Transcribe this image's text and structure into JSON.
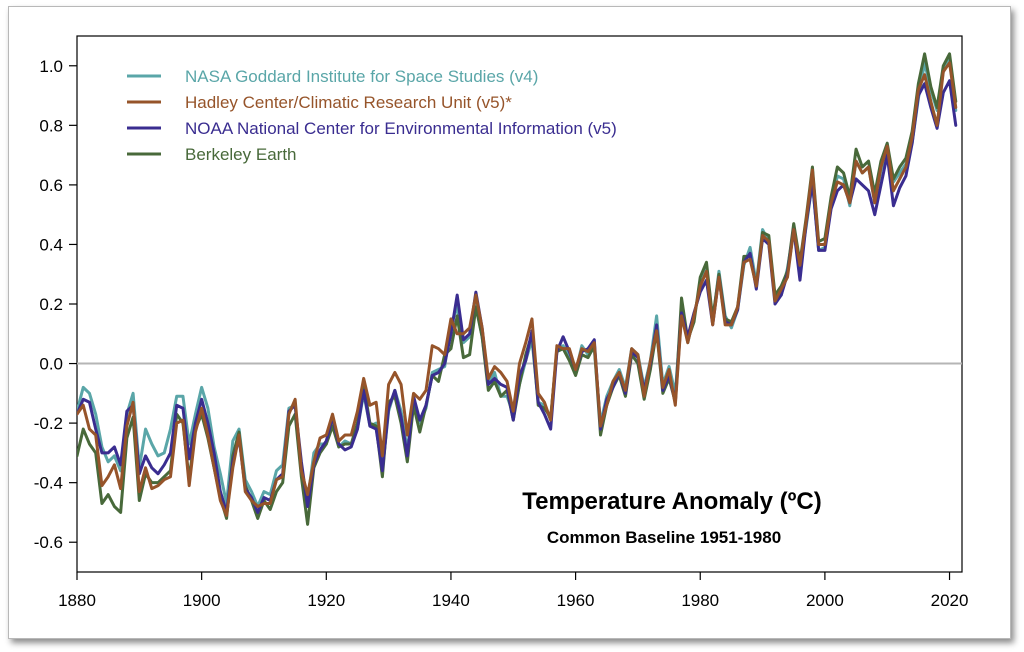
{
  "chart_data": {
    "type": "line",
    "title": "Temperature Anomaly (ºC)",
    "subtitle": "Common Baseline 1951-1980",
    "xlabel": "",
    "ylabel": "",
    "xlim": [
      1880,
      2022
    ],
    "ylim": [
      -0.7,
      1.1
    ],
    "x_ticks": [
      1880,
      1900,
      1920,
      1940,
      1960,
      1980,
      2000,
      2020
    ],
    "y_ticks": [
      -0.6,
      -0.4,
      -0.2,
      0.0,
      0.2,
      0.4,
      0.6,
      0.8,
      1.0
    ],
    "y_tick_labels": [
      "-0.6",
      "-0.4",
      "-0.2",
      "0.0",
      "0.2",
      "0.4",
      "0.6",
      "0.8",
      "1.0"
    ],
    "zero_line": true,
    "grid": false,
    "legend_position": "top-left",
    "x_start": 1880,
    "series": [
      {
        "name": "NASA Goddard Institute for Space Studies (v4)",
        "color": "#5aa6a8",
        "values": [
          -0.16,
          -0.08,
          -0.1,
          -0.17,
          -0.28,
          -0.33,
          -0.31,
          -0.36,
          -0.17,
          -0.1,
          -0.35,
          -0.22,
          -0.27,
          -0.31,
          -0.3,
          -0.22,
          -0.11,
          -0.11,
          -0.27,
          -0.17,
          -0.08,
          -0.15,
          -0.28,
          -0.37,
          -0.47,
          -0.26,
          -0.22,
          -0.39,
          -0.43,
          -0.48,
          -0.43,
          -0.44,
          -0.36,
          -0.34,
          -0.15,
          -0.14,
          -0.36,
          -0.46,
          -0.3,
          -0.27,
          -0.27,
          -0.19,
          -0.28,
          -0.26,
          -0.27,
          -0.22,
          -0.1,
          -0.21,
          -0.2,
          -0.36,
          -0.16,
          -0.09,
          -0.16,
          -0.29,
          -0.13,
          -0.2,
          -0.15,
          -0.03,
          -0.02,
          -0.01,
          0.13,
          0.19,
          0.07,
          0.09,
          0.2,
          0.09,
          -0.07,
          -0.03,
          -0.11,
          -0.11,
          -0.17,
          -0.07,
          0.01,
          0.08,
          -0.13,
          -0.14,
          -0.19,
          0.05,
          0.06,
          0.03,
          -0.03,
          0.06,
          0.03,
          0.05,
          -0.2,
          -0.11,
          -0.06,
          -0.02,
          -0.08,
          0.05,
          0.03,
          -0.08,
          0.01,
          0.16,
          -0.07,
          -0.01,
          -0.1,
          0.18,
          0.07,
          0.16,
          0.26,
          0.32,
          0.14,
          0.31,
          0.16,
          0.12,
          0.18,
          0.33,
          0.39,
          0.27,
          0.45,
          0.41,
          0.22,
          0.23,
          0.32,
          0.45,
          0.33,
          0.46,
          0.61,
          0.38,
          0.39,
          0.53,
          0.63,
          0.62,
          0.53,
          0.68,
          0.64,
          0.66,
          0.54,
          0.65,
          0.72,
          0.61,
          0.64,
          0.67,
          0.74,
          0.89,
          1.01,
          0.92,
          0.85,
          0.98,
          1.02,
          0.85
        ]
      },
      {
        "name": "Hadley Center/Climatic Research Unit (v5)*",
        "color": "#96542a",
        "values": [
          -0.17,
          -0.14,
          -0.22,
          -0.24,
          -0.41,
          -0.38,
          -0.34,
          -0.42,
          -0.21,
          -0.13,
          -0.43,
          -0.35,
          -0.42,
          -0.41,
          -0.39,
          -0.38,
          -0.2,
          -0.19,
          -0.41,
          -0.23,
          -0.15,
          -0.24,
          -0.35,
          -0.46,
          -0.51,
          -0.35,
          -0.24,
          -0.43,
          -0.46,
          -0.48,
          -0.47,
          -0.47,
          -0.39,
          -0.38,
          -0.17,
          -0.12,
          -0.36,
          -0.44,
          -0.33,
          -0.25,
          -0.24,
          -0.17,
          -0.26,
          -0.24,
          -0.24,
          -0.16,
          -0.05,
          -0.14,
          -0.13,
          -0.31,
          -0.07,
          -0.03,
          -0.07,
          -0.24,
          -0.1,
          -0.12,
          -0.09,
          0.06,
          0.05,
          0.03,
          0.15,
          0.1,
          0.1,
          0.12,
          0.23,
          0.12,
          -0.05,
          -0.01,
          -0.03,
          -0.06,
          -0.16,
          0.0,
          0.07,
          0.15,
          -0.1,
          -0.13,
          -0.19,
          0.06,
          0.05,
          0.05,
          -0.02,
          0.05,
          0.04,
          0.07,
          -0.21,
          -0.14,
          -0.06,
          -0.03,
          -0.09,
          0.05,
          0.03,
          -0.11,
          0.01,
          0.11,
          -0.08,
          -0.02,
          -0.14,
          0.16,
          0.07,
          0.16,
          0.26,
          0.31,
          0.13,
          0.29,
          0.13,
          0.13,
          0.19,
          0.34,
          0.35,
          0.26,
          0.43,
          0.41,
          0.21,
          0.25,
          0.29,
          0.45,
          0.33,
          0.48,
          0.65,
          0.4,
          0.4,
          0.54,
          0.61,
          0.6,
          0.54,
          0.68,
          0.64,
          0.66,
          0.54,
          0.66,
          0.73,
          0.58,
          0.62,
          0.66,
          0.76,
          0.92,
          0.97,
          0.88,
          0.8,
          0.98,
          1.01,
          0.86
        ]
      },
      {
        "name": "NOAA National Center for Environmental Information (v5)",
        "color": "#3a2d90",
        "values": [
          -0.17,
          -0.12,
          -0.13,
          -0.22,
          -0.3,
          -0.3,
          -0.28,
          -0.34,
          -0.16,
          -0.14,
          -0.37,
          -0.31,
          -0.35,
          -0.37,
          -0.34,
          -0.3,
          -0.14,
          -0.15,
          -0.32,
          -0.2,
          -0.12,
          -0.2,
          -0.3,
          -0.43,
          -0.5,
          -0.33,
          -0.25,
          -0.42,
          -0.45,
          -0.5,
          -0.45,
          -0.46,
          -0.39,
          -0.37,
          -0.16,
          -0.14,
          -0.33,
          -0.48,
          -0.34,
          -0.29,
          -0.26,
          -0.18,
          -0.27,
          -0.29,
          -0.28,
          -0.22,
          -0.09,
          -0.21,
          -0.22,
          -0.36,
          -0.15,
          -0.09,
          -0.18,
          -0.31,
          -0.11,
          -0.19,
          -0.14,
          -0.04,
          -0.03,
          0.0,
          0.1,
          0.23,
          0.08,
          0.1,
          0.24,
          0.12,
          -0.07,
          -0.05,
          -0.07,
          -0.08,
          -0.19,
          -0.04,
          0.01,
          0.11,
          -0.13,
          -0.17,
          -0.22,
          0.04,
          0.09,
          0.04,
          -0.02,
          0.04,
          0.05,
          0.08,
          -0.22,
          -0.12,
          -0.08,
          -0.03,
          -0.1,
          0.04,
          0.02,
          -0.09,
          0.0,
          0.13,
          -0.09,
          -0.04,
          -0.13,
          0.17,
          0.09,
          0.17,
          0.24,
          0.28,
          0.13,
          0.29,
          0.14,
          0.13,
          0.18,
          0.34,
          0.37,
          0.25,
          0.42,
          0.4,
          0.2,
          0.23,
          0.3,
          0.45,
          0.28,
          0.47,
          0.61,
          0.38,
          0.38,
          0.52,
          0.58,
          0.6,
          0.54,
          0.62,
          0.6,
          0.58,
          0.5,
          0.6,
          0.7,
          0.53,
          0.59,
          0.63,
          0.74,
          0.9,
          0.94,
          0.86,
          0.79,
          0.91,
          0.95,
          0.8
        ]
      },
      {
        "name": "Berkeley Earth",
        "color": "#48693a",
        "values": [
          -0.31,
          -0.22,
          -0.27,
          -0.3,
          -0.47,
          -0.44,
          -0.48,
          -0.5,
          -0.25,
          -0.18,
          -0.46,
          -0.37,
          -0.4,
          -0.4,
          -0.38,
          -0.36,
          -0.17,
          -0.2,
          -0.39,
          -0.22,
          -0.17,
          -0.25,
          -0.35,
          -0.45,
          -0.52,
          -0.31,
          -0.23,
          -0.41,
          -0.46,
          -0.52,
          -0.46,
          -0.49,
          -0.43,
          -0.4,
          -0.21,
          -0.17,
          -0.38,
          -0.54,
          -0.35,
          -0.3,
          -0.27,
          -0.21,
          -0.28,
          -0.27,
          -0.27,
          -0.2,
          -0.07,
          -0.2,
          -0.21,
          -0.38,
          -0.13,
          -0.11,
          -0.2,
          -0.33,
          -0.14,
          -0.23,
          -0.14,
          -0.04,
          -0.06,
          0.03,
          0.05,
          0.16,
          0.02,
          0.03,
          0.19,
          0.09,
          -0.09,
          -0.06,
          -0.11,
          -0.09,
          -0.19,
          -0.07,
          0.03,
          0.1,
          -0.14,
          -0.15,
          -0.18,
          0.04,
          0.05,
          0.01,
          -0.04,
          0.03,
          0.02,
          0.06,
          -0.24,
          -0.14,
          -0.08,
          -0.04,
          -0.11,
          0.03,
          0.0,
          -0.12,
          -0.02,
          0.11,
          -0.1,
          -0.05,
          -0.13,
          0.22,
          0.08,
          0.14,
          0.29,
          0.34,
          0.15,
          0.3,
          0.15,
          0.14,
          0.19,
          0.36,
          0.36,
          0.26,
          0.44,
          0.43,
          0.23,
          0.26,
          0.31,
          0.47,
          0.34,
          0.49,
          0.66,
          0.41,
          0.42,
          0.56,
          0.66,
          0.64,
          0.56,
          0.72,
          0.66,
          0.68,
          0.57,
          0.68,
          0.74,
          0.62,
          0.66,
          0.69,
          0.78,
          0.94,
          1.04,
          0.93,
          0.86,
          1.0,
          1.04,
          0.88
        ]
      }
    ]
  }
}
